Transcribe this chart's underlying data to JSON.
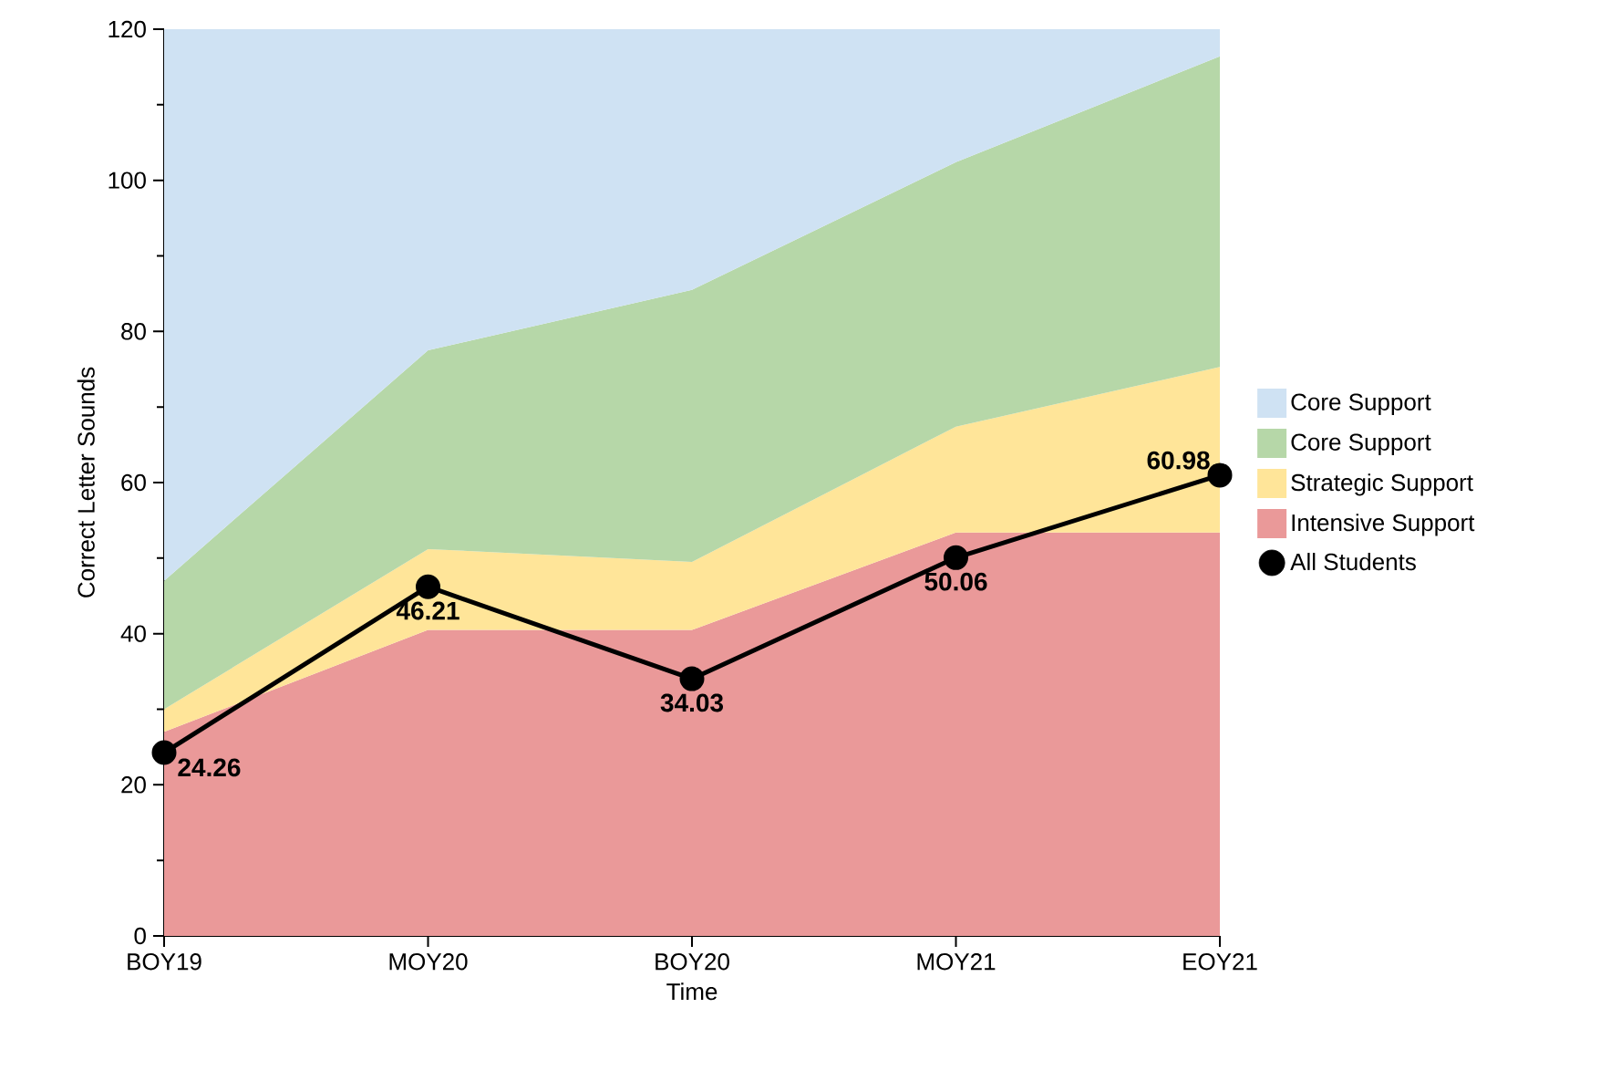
{
  "chart_data": {
    "type": "area",
    "xlabel": "Time",
    "ylabel": "Correct Letter Sounds",
    "categories": [
      "BOY19",
      "MOY20",
      "BOY20",
      "MOY21",
      "EOY21"
    ],
    "stacked": true,
    "ylim": [
      0,
      120
    ],
    "yticks": [
      0,
      20,
      40,
      60,
      80,
      100,
      120
    ],
    "legend": "right",
    "grid": false,
    "series": [
      {
        "name": "Intensive Support",
        "color": "#ea9999",
        "values": [
          27,
          40.5,
          40.5,
          53.4,
          53.4
        ]
      },
      {
        "name": "Strategic Support",
        "color": "#ffe599",
        "values": [
          3,
          10.7,
          9,
          14,
          21.9
        ]
      },
      {
        "name": "Core Support",
        "color": "#b6d7a8",
        "values": [
          17,
          26.3,
          36,
          35,
          41.1
        ]
      },
      {
        "name": "Core Support",
        "color": "#cfe2f3",
        "values": [
          73,
          42.5,
          34.5,
          17.6,
          3.6
        ]
      },
      {
        "name": "All Students",
        "type": "line",
        "color": "#000000",
        "marker": "circle",
        "line_style": "solid",
        "data_labels": true,
        "values": [
          24.26,
          46.21,
          34.03,
          50.06,
          60.98
        ]
      }
    ]
  }
}
